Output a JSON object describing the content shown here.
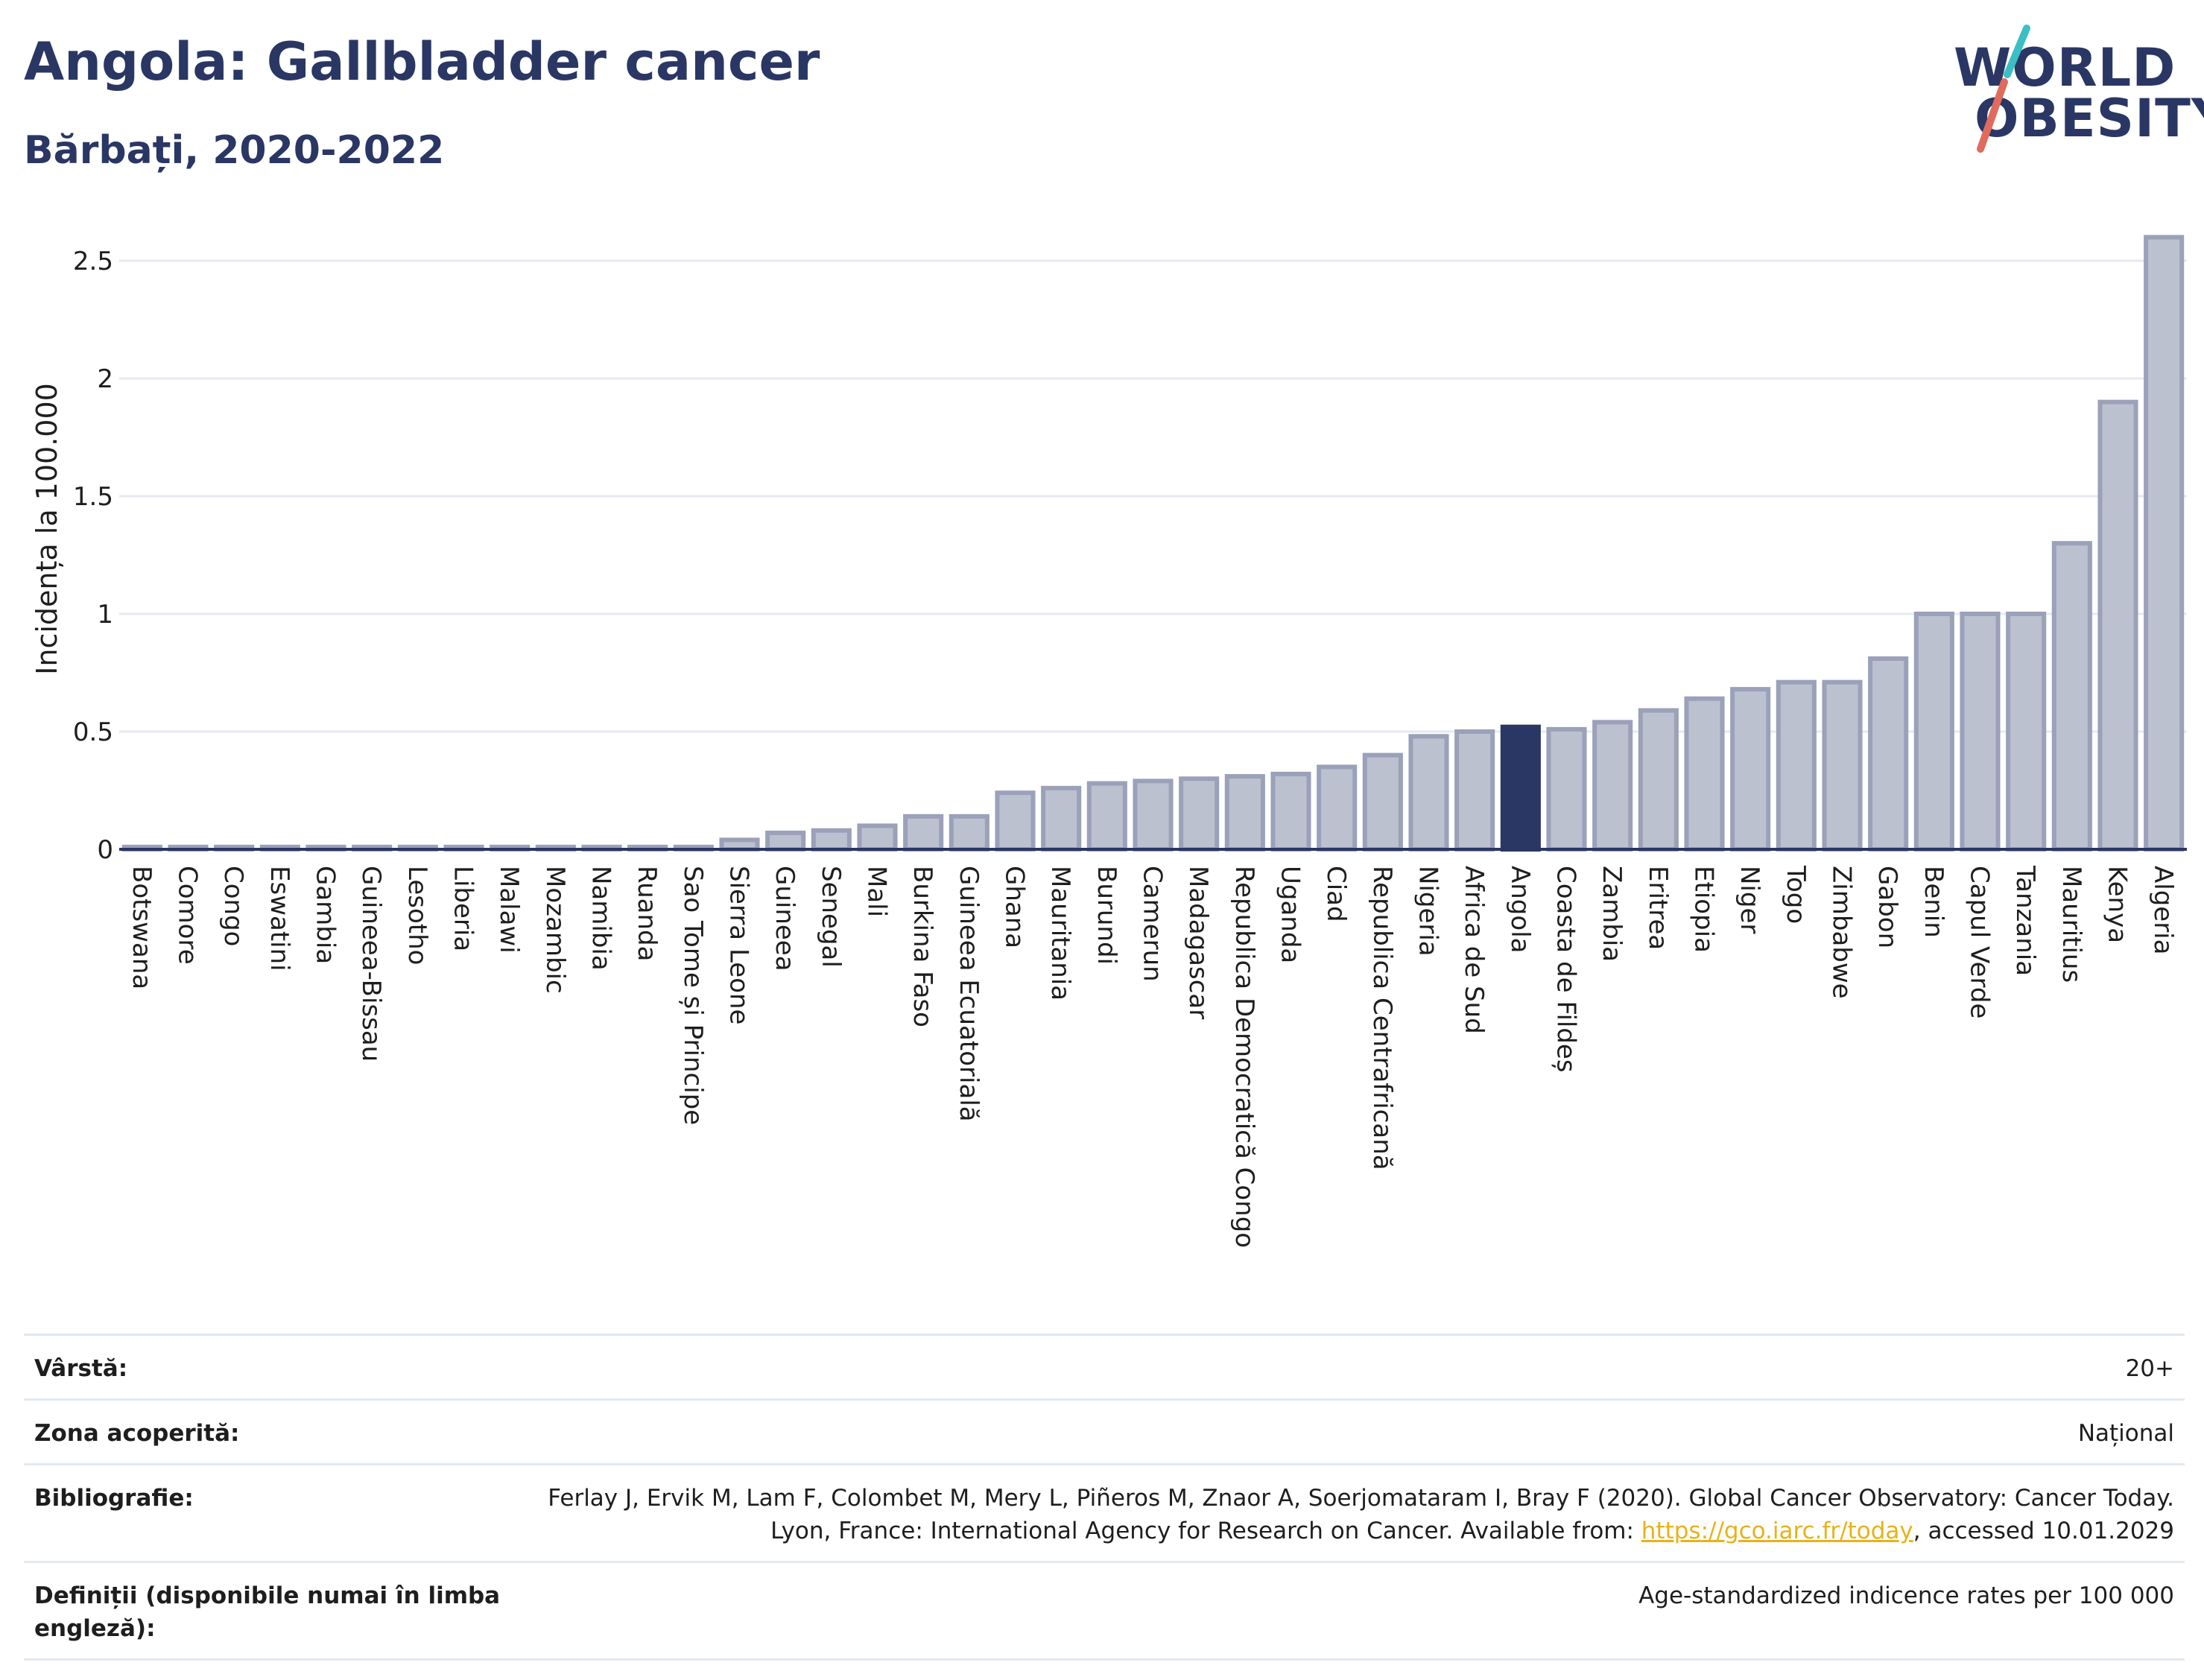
{
  "header": {
    "title": "Angola: Gallbladder cancer",
    "subtitle": "Bărbați, 2020-2022"
  },
  "logo": {
    "line1": "WORLD",
    "line2": "OBESITY",
    "colors": {
      "text": "#2a3764",
      "slash_top": "#3cbfc2",
      "slash_bottom": "#e06b5d"
    }
  },
  "chart_data": {
    "type": "bar",
    "ylabel": "Incidența la 100.000",
    "xlabel": "",
    "ylim": [
      0,
      2.7
    ],
    "yticks": [
      0,
      0.5,
      1,
      1.5,
      2,
      2.5
    ],
    "ytick_labels": [
      "0",
      "0.5",
      "1",
      "1.5",
      "2",
      "2.5"
    ],
    "grid": true,
    "highlight": "Angola",
    "colors": {
      "bar": "#bcc1d0",
      "bar_border": "#9aa1b8",
      "highlight": "#2a3764",
      "grid": "#e6eaf0",
      "axis": "#2a3764"
    },
    "categories": [
      "Botswana",
      "Comore",
      "Congo",
      "Eswatini",
      "Gambia",
      "Guineea-Bissau",
      "Lesotho",
      "Liberia",
      "Malawi",
      "Mozambic",
      "Namibia",
      "Ruanda",
      "Sao Tome și Principe",
      "Sierra Leone",
      "Guineea",
      "Senegal",
      "Mali",
      "Burkina Faso",
      "Guineea Ecuatorială",
      "Ghana",
      "Mauritania",
      "Burundi",
      "Camerun",
      "Madagascar",
      "Republica Democratică Congo",
      "Uganda",
      "Ciad",
      "Republica Centrafricană",
      "Nigeria",
      "Africa de Sud",
      "Angola",
      "Coasta de Fildeș",
      "Zambia",
      "Eritrea",
      "Etiopia",
      "Niger",
      "Togo",
      "Zimbabwe",
      "Gabon",
      "Benin",
      "Capul Verde",
      "Tanzania",
      "Mauritius",
      "Kenya",
      "Algeria"
    ],
    "values": [
      0.01,
      0.01,
      0.01,
      0.01,
      0.01,
      0.01,
      0.01,
      0.01,
      0.01,
      0.01,
      0.01,
      0.01,
      0.01,
      0.04,
      0.07,
      0.08,
      0.1,
      0.14,
      0.14,
      0.24,
      0.26,
      0.28,
      0.29,
      0.3,
      0.31,
      0.32,
      0.35,
      0.4,
      0.48,
      0.5,
      0.52,
      0.51,
      0.54,
      0.59,
      0.64,
      0.68,
      0.71,
      0.71,
      0.81,
      1.0,
      1.0,
      1.0,
      1.3,
      1.9,
      2.6
    ]
  },
  "info": {
    "age_label": "Vârstă:",
    "age_value": "20+",
    "area_label": "Zona acoperită:",
    "area_value": "Național",
    "biblio_label": "Bibliografie:",
    "biblio_text_1": "Ferlay J, Ervik M, Lam F, Colombet M, Mery L, Piñeros M, Znaor A, Soerjomataram I, Bray F (2020). Global Cancer Observatory: Cancer Today. Lyon, France: International Agency for Research on Cancer. Available from: ",
    "biblio_link": "https://gco.iarc.fr/today",
    "biblio_text_2": ", accessed 10.01.2029",
    "def_label": "Definiții (disponibile numai în limba engleză):",
    "def_value": "Age-standardized indicence rates per 100 000"
  }
}
